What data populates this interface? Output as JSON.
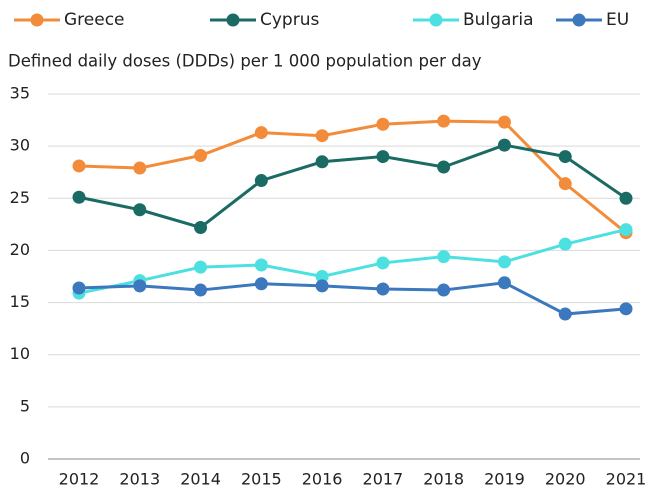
{
  "chart_data": {
    "type": "line",
    "subtitle": "Defined daily doses (DDDs) per 1 000 population per day",
    "categories": [
      "2012",
      "2013",
      "2014",
      "2015",
      "2016",
      "2017",
      "2018",
      "2019",
      "2020",
      "2021"
    ],
    "series": [
      {
        "name": "Greece",
        "color": "#f28c3a",
        "values": [
          28.1,
          27.9,
          29.1,
          31.3,
          31.0,
          32.1,
          32.4,
          32.3,
          26.4,
          21.7
        ]
      },
      {
        "name": "Cyprus",
        "color": "#1a6b63",
        "values": [
          25.1,
          23.9,
          22.2,
          26.7,
          28.5,
          29.0,
          28.0,
          30.1,
          29.0,
          25.0
        ]
      },
      {
        "name": "Bulgaria",
        "color": "#4de0e0",
        "values": [
          15.9,
          17.1,
          18.4,
          18.6,
          17.5,
          18.8,
          19.4,
          18.9,
          20.6,
          22.0
        ]
      },
      {
        "name": "EU",
        "color": "#3b78be",
        "values": [
          16.4,
          16.6,
          16.2,
          16.8,
          16.6,
          16.3,
          16.2,
          16.9,
          13.9,
          14.4
        ]
      }
    ],
    "ylim": [
      0,
      35
    ],
    "yticks": [
      0,
      5,
      10,
      15,
      20,
      25,
      30,
      35
    ],
    "grid": true,
    "legend": "top"
  }
}
